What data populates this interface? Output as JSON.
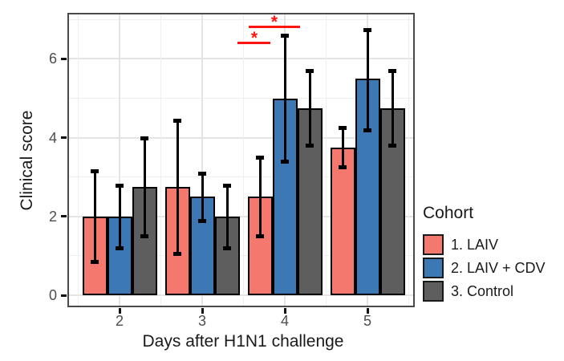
{
  "chart_data": {
    "type": "bar",
    "title": "",
    "xlabel": "Days after H1N1 challenge",
    "ylabel": "Clinical score",
    "categories": [
      "2",
      "3",
      "4",
      "5"
    ],
    "y_ticks": [
      0,
      2,
      4,
      6
    ],
    "ylim": [
      -0.3,
      7.2
    ],
    "grid": true,
    "bar_outline_color": "#000000",
    "errorbar_color": "#000000",
    "series": [
      {
        "name": "1. LAIV",
        "color": "#F4786E",
        "values": [
          2.0,
          2.75,
          2.5,
          3.75
        ],
        "error_low": [
          0.85,
          1.05,
          1.5,
          3.25
        ],
        "error_high": [
          3.15,
          4.45,
          3.5,
          4.25
        ]
      },
      {
        "name": "2. LAIV + CDV",
        "color": "#3C78B4",
        "values": [
          2.0,
          2.5,
          5.0,
          5.5
        ],
        "error_low": [
          1.2,
          1.9,
          3.4,
          4.2
        ],
        "error_high": [
          2.8,
          3.1,
          6.6,
          6.75
        ]
      },
      {
        "name": "3. Control",
        "color": "#5E5E5E",
        "values": [
          2.75,
          2.0,
          4.75,
          4.75
        ],
        "error_low": [
          1.5,
          1.2,
          3.8,
          3.8
        ],
        "error_high": [
          4.0,
          2.8,
          5.7,
          5.7
        ]
      }
    ],
    "legend": {
      "title": "Cohort",
      "position": "right"
    },
    "significance": [
      {
        "symbol": "*",
        "color": "#FF1410",
        "comparison": "day 4: 1. LAIV vs 2. LAIV + CDV"
      },
      {
        "symbol": "*",
        "color": "#FF1410",
        "comparison": "day 4: 1. LAIV vs 3. Control"
      }
    ]
  }
}
